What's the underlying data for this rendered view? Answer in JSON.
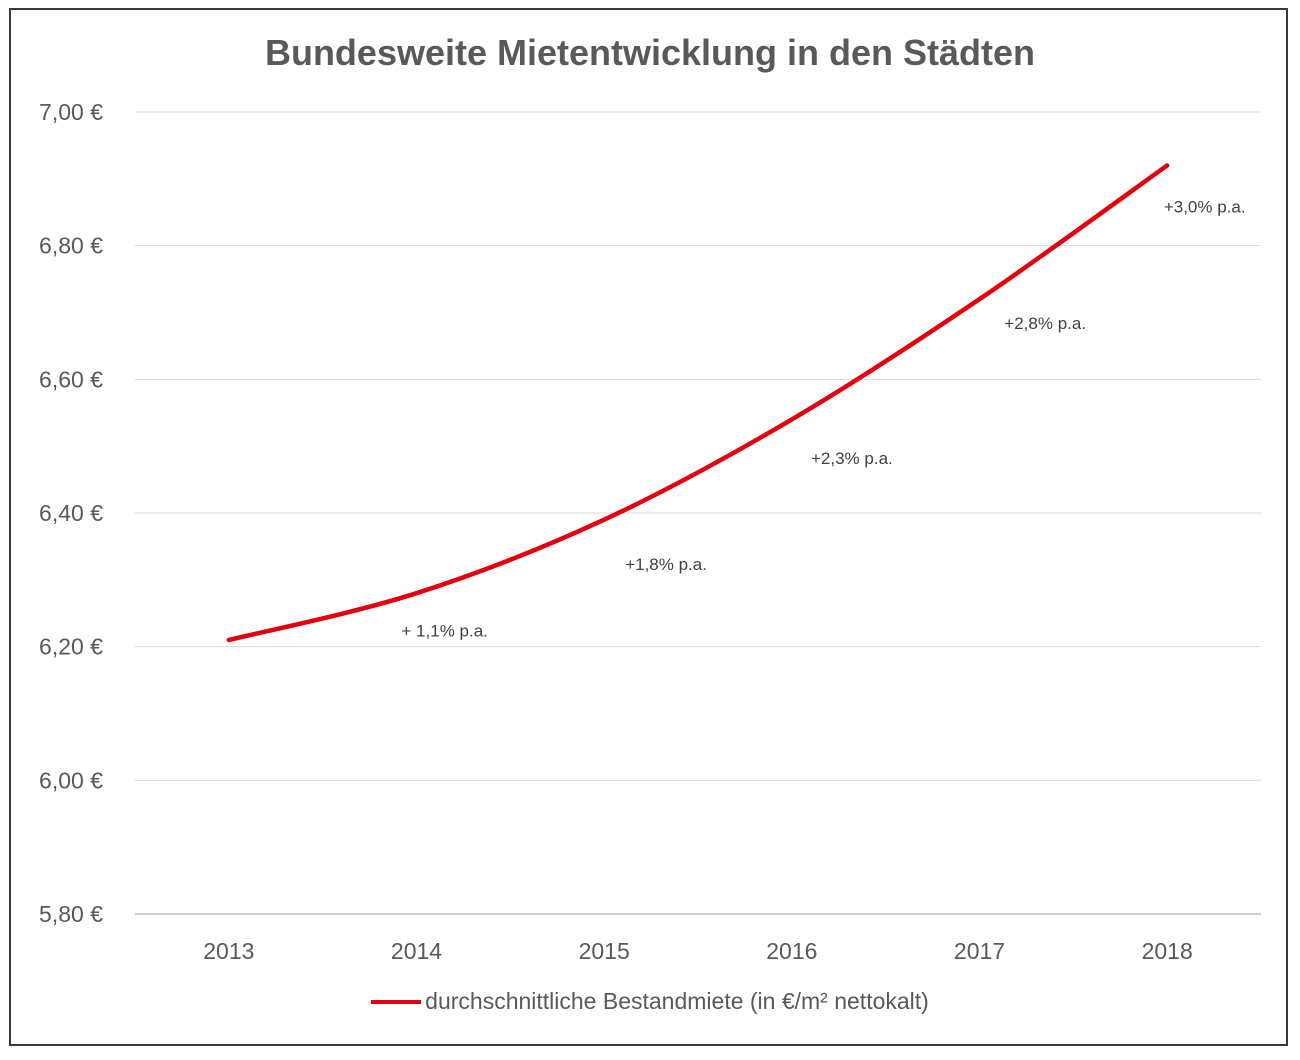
{
  "chart_data": {
    "type": "line",
    "title": "Bundesweite Mietentwicklung in den Städten",
    "x": [
      "2013",
      "2014",
      "2015",
      "2016",
      "2017",
      "2018"
    ],
    "series": [
      {
        "name": "durchschnittliche Bestandmiete (in €/m² nettokalt)",
        "color": "#e3000f",
        "values": [
          6.21,
          6.28,
          6.39,
          6.54,
          6.72,
          6.92
        ]
      }
    ],
    "ylim": [
      5.8,
      7.0
    ],
    "yticks": [
      5.8,
      6.0,
      6.2,
      6.4,
      6.6,
      6.8,
      7.0
    ],
    "ytick_labels": [
      "5,80 €",
      "6,00 €",
      "6,20 €",
      "6,40 €",
      "6,60 €",
      "6,80 €",
      "7,00 €"
    ],
    "annotations": [
      {
        "text": "+ 1,1% p.a.",
        "x": 2014.15,
        "y": 6.215
      },
      {
        "text": "+1,8% p.a.",
        "x": 2015.33,
        "y": 6.315
      },
      {
        "text": "+2,3% p.a.",
        "x": 2016.32,
        "y": 6.473
      },
      {
        "text": "+2,8% p.a.",
        "x": 2017.35,
        "y": 6.675
      },
      {
        "text": "+3,0% p.a.",
        "x": 2018.2,
        "y": 6.85
      }
    ],
    "grid": true,
    "legend": "bottom"
  }
}
